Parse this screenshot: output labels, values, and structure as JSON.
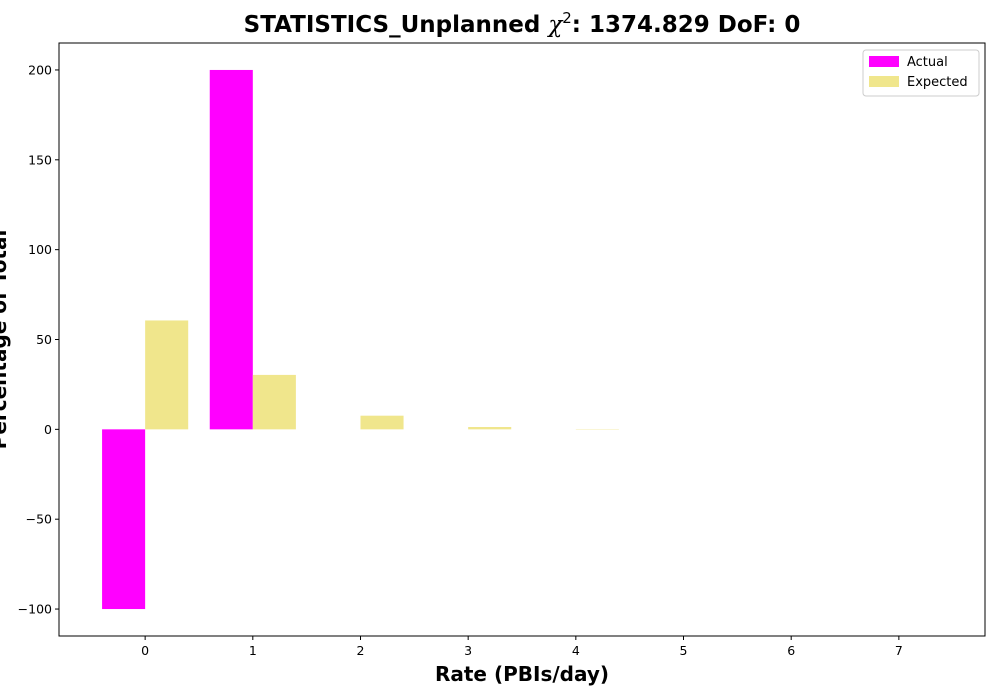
{
  "chart_data": {
    "type": "bar",
    "title_prefix": "STATISTICS_Unplanned ",
    "title_chi": "χ",
    "title_sup": "2",
    "title_suffix": ": 1374.829 DoF: 0",
    "xlabel": "Rate (PBIs/day)",
    "ylabel": "Percentage of Total",
    "categories": [
      "0",
      "1",
      "2",
      "3",
      "4",
      "5",
      "6",
      "7"
    ],
    "x": [
      0,
      1,
      2,
      3,
      4,
      5,
      6,
      7
    ],
    "xlim": [
      -0.8,
      7.8
    ],
    "ylim": [
      -115,
      215
    ],
    "yticks": [
      -100,
      -50,
      0,
      50,
      100,
      150,
      200
    ],
    "ytick_labels": [
      "−100",
      "−50",
      "0",
      "50",
      "100",
      "150",
      "200"
    ],
    "grid": false,
    "legend_position": "top-right",
    "series": [
      {
        "name": "Actual",
        "color": "#ff00ff",
        "offset": -0.2,
        "values": [
          -100,
          200,
          0,
          0,
          0,
          0,
          0,
          0
        ]
      },
      {
        "name": "Expected",
        "color": "#f0e68c",
        "offset": 0.2,
        "values": [
          60.6,
          30.3,
          7.6,
          1.3,
          0.2,
          0.0,
          0.0,
          0.0
        ]
      }
    ]
  }
}
